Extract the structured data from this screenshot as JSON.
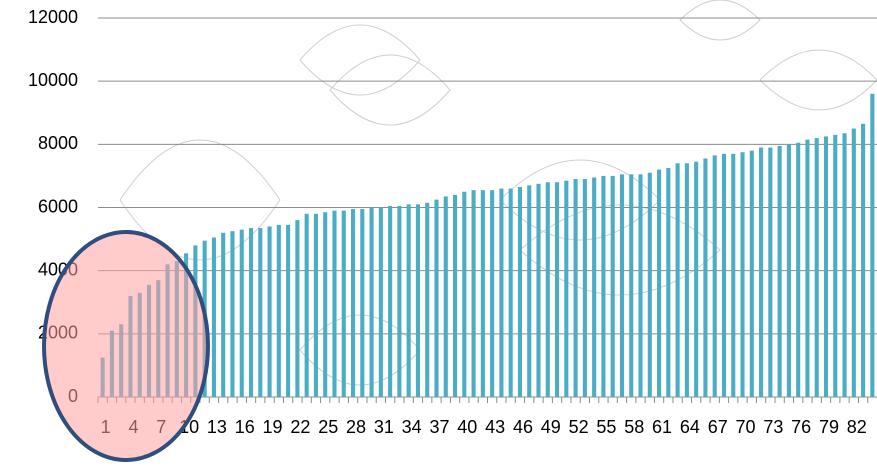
{
  "chart_data": {
    "type": "bar",
    "categories": [
      "1",
      null,
      null,
      "4",
      null,
      null,
      "7",
      null,
      null,
      "10",
      null,
      null,
      "13",
      null,
      null,
      "16",
      null,
      null,
      "19",
      null,
      null,
      "22",
      null,
      null,
      "25",
      null,
      null,
      "28",
      null,
      null,
      "31",
      null,
      null,
      "34",
      null,
      null,
      "37",
      null,
      null,
      "40",
      null,
      null,
      "43",
      null,
      null,
      "46",
      null,
      null,
      "49",
      null,
      null,
      "52",
      null,
      null,
      "55",
      null,
      null,
      "58",
      null,
      null,
      "61",
      null,
      null,
      "64",
      null,
      null,
      "67",
      null,
      null,
      "70",
      null,
      null,
      "73",
      null,
      null,
      "76",
      null,
      null,
      "79",
      null,
      null,
      "82",
      null,
      null
    ],
    "values": [
      1250,
      2100,
      2300,
      3200,
      3300,
      3550,
      3700,
      4200,
      4300,
      4550,
      4800,
      4950,
      5050,
      5200,
      5250,
      5300,
      5350,
      5350,
      5400,
      5450,
      5450,
      5600,
      5800,
      5800,
      5850,
      5900,
      5900,
      5950,
      5950,
      6000,
      6000,
      6050,
      6050,
      6100,
      6100,
      6150,
      6250,
      6350,
      6400,
      6500,
      6550,
      6550,
      6550,
      6600,
      6600,
      6650,
      6700,
      6750,
      6800,
      6800,
      6850,
      6900,
      6900,
      6950,
      7000,
      7000,
      7050,
      7050,
      7050,
      7100,
      7200,
      7250,
      7400,
      7400,
      7450,
      7550,
      7650,
      7700,
      7700,
      7750,
      7800,
      7900,
      7900,
      7950,
      8000,
      8050,
      8150,
      8200,
      8250,
      8300,
      8350,
      8500,
      8650,
      9600
    ],
    "color": "#4bacc6",
    "ylim": [
      0,
      12000
    ],
    "yticks": [
      0,
      2000,
      4000,
      6000,
      8000,
      10000,
      12000
    ],
    "grid": true
  }
}
